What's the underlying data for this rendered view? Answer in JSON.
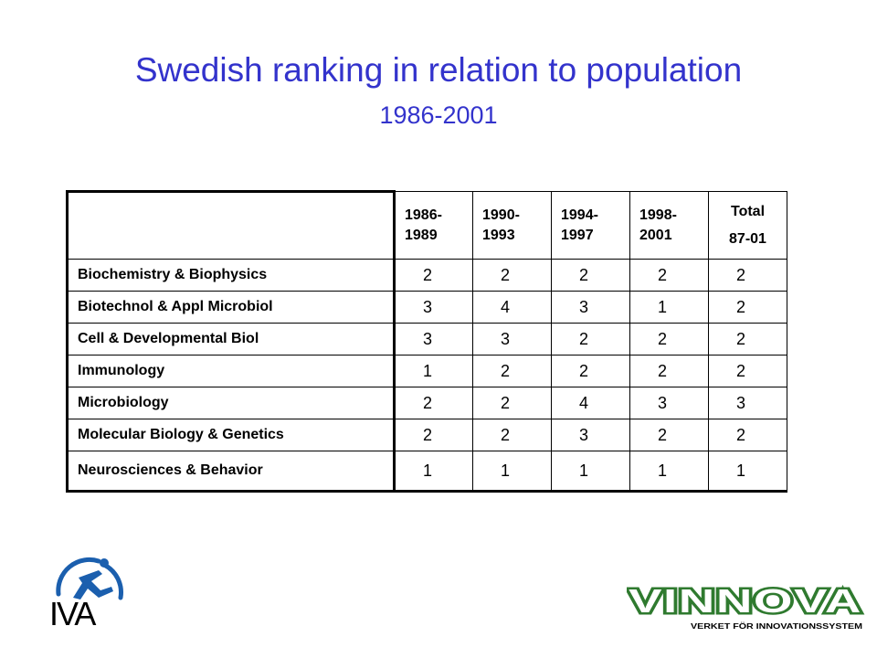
{
  "slide": {
    "title": "Swedish ranking in relation to population",
    "subtitle": "1986-2001"
  },
  "table": {
    "headers": [
      {
        "line1": "1986-",
        "line2": "1989"
      },
      {
        "line1": "1990-",
        "line2": "1993"
      },
      {
        "line1": "1994-",
        "line2": "1997"
      },
      {
        "line1": "1998-",
        "line2": "2001"
      },
      {
        "line1": "Total",
        "line2": "87-01"
      }
    ],
    "rows": [
      {
        "field": "Biochemistry & Biophysics",
        "values": [
          "2",
          "2",
          "2",
          "2",
          "2"
        ]
      },
      {
        "field": "Biotechnol & Appl Microbiol",
        "values": [
          "3",
          "4",
          "3",
          "1",
          "2"
        ]
      },
      {
        "field": "Cell & Developmental Biol",
        "values": [
          "3",
          "3",
          "2",
          "2",
          "2"
        ]
      },
      {
        "field": "Immunology",
        "values": [
          "1",
          "2",
          "2",
          "2",
          "2"
        ]
      },
      {
        "field": "Microbiology",
        "values": [
          "2",
          "2",
          "4",
          "3",
          "3"
        ]
      },
      {
        "field": "Molecular Biology & Genetics",
        "values": [
          "2",
          "2",
          "3",
          "2",
          "2"
        ]
      },
      {
        "field": "Neurosciences & Behavior",
        "values": [
          "1",
          "1",
          "1",
          "1",
          "1"
        ]
      }
    ]
  },
  "logos": {
    "iva": {
      "text": "IVA",
      "icon": "iva-runner-logo",
      "color": "#1b5fae"
    },
    "vinnova": {
      "text": "VINNOVA",
      "tagline": "VERKET FÖR INNOVATIONSSYSTEM",
      "icon": "vinnova-logo",
      "color": "#2f7a2f"
    }
  },
  "colors": {
    "title": "#3333cc"
  }
}
